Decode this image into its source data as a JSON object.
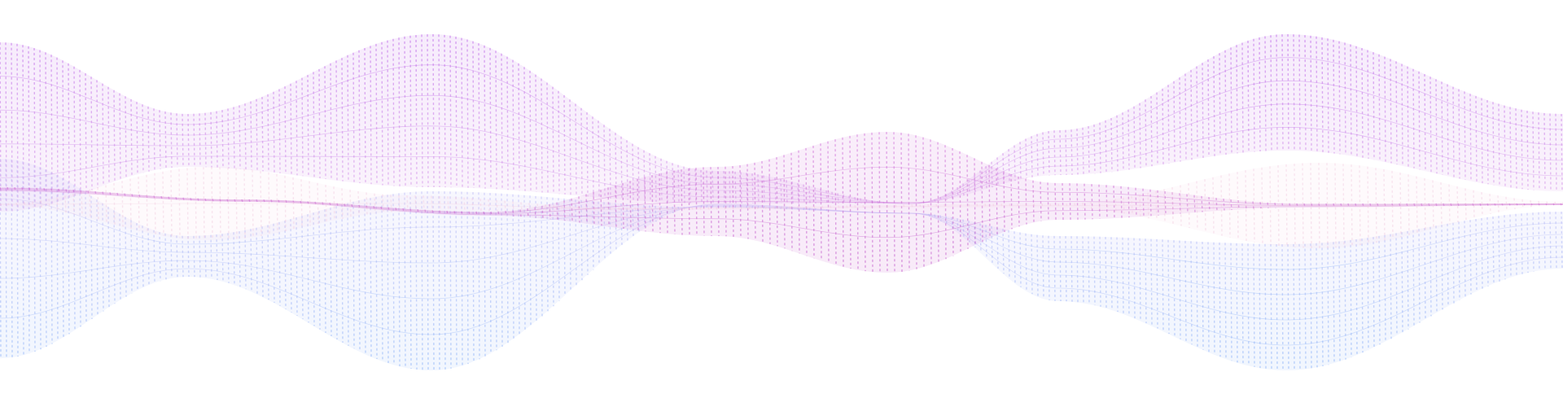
{
  "scene": {
    "kind": "decorative-wave-ribbons",
    "background": "#ffffff",
    "ribbons": [
      {
        "name": "upper",
        "top_color": "#b95fe6",
        "bottom_color": "#d79be8",
        "opacity": 0.55
      },
      {
        "name": "lower",
        "top_color": "#c3b6f5",
        "bottom_color": "#7eaaf7",
        "opacity": 0.5
      },
      {
        "name": "middle",
        "top_color": "#d070d8",
        "bottom_color": "#c055c8",
        "opacity": 0.55
      },
      {
        "name": "pink-haze",
        "top_color": "#f2cbe0",
        "bottom_color": "#f0c6dc",
        "opacity": 0.45
      }
    ]
  }
}
